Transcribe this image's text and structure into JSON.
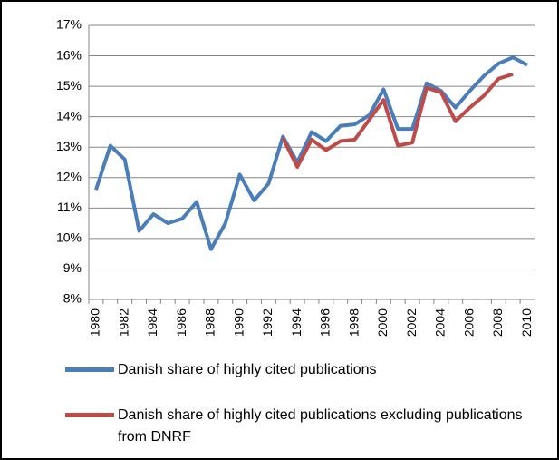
{
  "chart_data": {
    "type": "line",
    "categories": [
      "1980",
      null,
      "1982",
      null,
      "1984",
      null,
      "1986",
      null,
      "1988",
      null,
      "1990",
      null,
      "1992",
      null,
      "1994",
      null,
      "1996",
      null,
      "1998",
      null,
      "2000",
      null,
      "2002",
      null,
      "2004",
      null,
      "2006",
      null,
      "2008",
      null,
      "2010"
    ],
    "series": [
      {
        "name": "Danish share of highly cited publications",
        "color": "#4a7ebb",
        "values": [
          11.6,
          13.05,
          12.6,
          10.25,
          10.8,
          10.5,
          10.65,
          11.2,
          9.65,
          10.5,
          12.1,
          11.25,
          11.8,
          13.35,
          12.5,
          13.5,
          13.2,
          13.7,
          13.75,
          14.05,
          14.9,
          13.6,
          13.6,
          15.1,
          14.85,
          14.3,
          14.85,
          15.35,
          15.75,
          15.95,
          15.7
        ]
      },
      {
        "name": "Danish share of highly cited publications excluding publications from DNRF",
        "color": "#be4b48",
        "values": [
          null,
          null,
          null,
          null,
          null,
          null,
          null,
          null,
          null,
          null,
          null,
          null,
          null,
          13.3,
          12.35,
          13.25,
          12.9,
          13.2,
          13.25,
          13.9,
          14.55,
          13.05,
          13.15,
          14.95,
          14.8,
          13.85,
          14.3,
          14.7,
          15.25,
          15.4,
          null
        ]
      }
    ],
    "ylim": [
      8,
      17
    ],
    "yticks": [
      {
        "value": 8,
        "label": "8%"
      },
      {
        "value": 9,
        "label": "9%"
      },
      {
        "value": 10,
        "label": "10%"
      },
      {
        "value": 11,
        "label": "11%"
      },
      {
        "value": 12,
        "label": "12%"
      },
      {
        "value": 13,
        "label": "13%"
      },
      {
        "value": 14,
        "label": "14%"
      },
      {
        "value": 15,
        "label": "15%"
      },
      {
        "value": 16,
        "label": "16%"
      },
      {
        "value": 17,
        "label": "17%"
      }
    ],
    "grid": true,
    "legend": "bottom"
  }
}
